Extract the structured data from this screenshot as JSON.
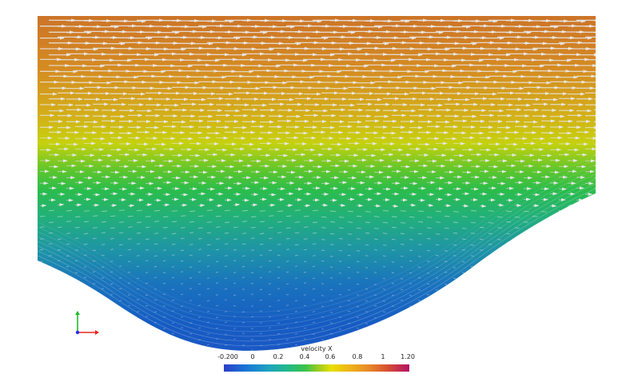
{
  "colorbar": {
    "title": "velocity X",
    "ticks": [
      "-0.200",
      "0",
      "0.2",
      "0.4",
      "0.6",
      "0.8",
      "1",
      "1.20"
    ]
  },
  "field": {
    "top_color": "#d07a2a",
    "mid_color": "#c8d20e",
    "green_color": "#2cc24a",
    "low_color": "#1565c8"
  },
  "axes_triad": {
    "x_color": "#e8251a",
    "y_color": "#1fba2a",
    "z_color": "#2a2af0"
  }
}
